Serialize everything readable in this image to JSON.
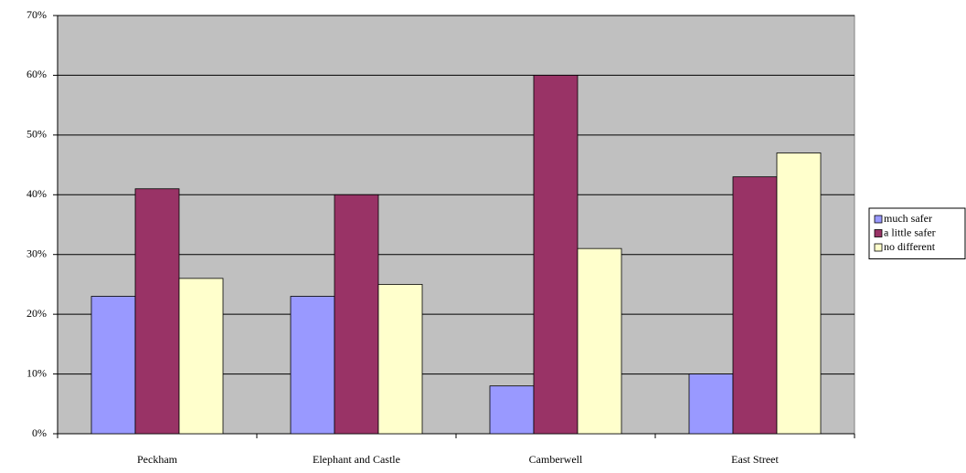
{
  "chart_data": {
    "type": "bar",
    "categories": [
      "Peckham",
      "Elephant and Castle",
      "Camberwell",
      "East Street"
    ],
    "series": [
      {
        "name": "much safer",
        "color": "#9999ff",
        "values": [
          23,
          23,
          8,
          10
        ]
      },
      {
        "name": "a little safer",
        "color": "#993366",
        "values": [
          41,
          40,
          60,
          43
        ]
      },
      {
        "name": "no different",
        "color": "#ffffcc",
        "values": [
          26,
          25,
          31,
          47
        ]
      }
    ],
    "ylim": [
      0,
      70
    ],
    "yticks": [
      {
        "value": 0,
        "label": "0%"
      },
      {
        "value": 10,
        "label": "10%"
      },
      {
        "value": 20,
        "label": "20%"
      },
      {
        "value": 30,
        "label": "30%"
      },
      {
        "value": 40,
        "label": "40%"
      },
      {
        "value": 50,
        "label": "50%"
      },
      {
        "value": 60,
        "label": "60%"
      },
      {
        "value": 70,
        "label": "70%"
      }
    ],
    "grid": true,
    "legend": "right",
    "plot_background": "#c0c0c0"
  }
}
